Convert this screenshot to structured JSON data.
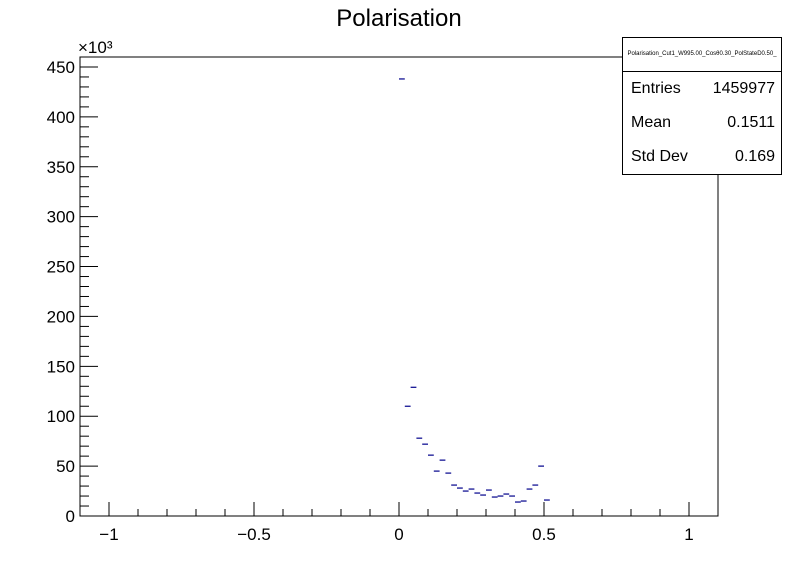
{
  "chart_data": {
    "type": "histogram",
    "title": "Polarisation",
    "xlabel": "",
    "ylabel": "",
    "y_multiplier_label": "×10³",
    "xlim": [
      -1.1,
      1.1
    ],
    "ylim": [
      0,
      460
    ],
    "x_ticks": [
      -1,
      -0.5,
      0,
      0.5,
      1
    ],
    "x_tick_labels": [
      "−1",
      "−0.5",
      "0",
      "0.5",
      "1"
    ],
    "y_ticks": [
      0,
      50,
      100,
      150,
      200,
      250,
      300,
      350,
      400,
      450
    ],
    "y_tick_labels": [
      "0",
      "50",
      "100",
      "150",
      "200",
      "250",
      "300",
      "350",
      "400",
      "450"
    ],
    "bin_width": 0.02,
    "bins": [
      {
        "x": 0.01,
        "y": 438
      },
      {
        "x": 0.03,
        "y": 110
      },
      {
        "x": 0.05,
        "y": 129
      },
      {
        "x": 0.07,
        "y": 78
      },
      {
        "x": 0.09,
        "y": 72
      },
      {
        "x": 0.11,
        "y": 61
      },
      {
        "x": 0.13,
        "y": 45
      },
      {
        "x": 0.15,
        "y": 56
      },
      {
        "x": 0.17,
        "y": 43
      },
      {
        "x": 0.19,
        "y": 31
      },
      {
        "x": 0.21,
        "y": 28
      },
      {
        "x": 0.23,
        "y": 25
      },
      {
        "x": 0.25,
        "y": 27
      },
      {
        "x": 0.27,
        "y": 23
      },
      {
        "x": 0.29,
        "y": 21
      },
      {
        "x": 0.31,
        "y": 26
      },
      {
        "x": 0.33,
        "y": 19
      },
      {
        "x": 0.35,
        "y": 20
      },
      {
        "x": 0.37,
        "y": 22
      },
      {
        "x": 0.39,
        "y": 20
      },
      {
        "x": 0.41,
        "y": 14
      },
      {
        "x": 0.43,
        "y": 15
      },
      {
        "x": 0.45,
        "y": 27
      },
      {
        "x": 0.47,
        "y": 31
      },
      {
        "x": 0.49,
        "y": 50
      },
      {
        "x": 0.51,
        "y": 16
      }
    ],
    "marker_color": "#00008b"
  },
  "stats": {
    "name": "Polarisation_Cut1_W995.00_Cosθ0.30_PolStateD0.50_",
    "entries_label": "Entries",
    "entries_value": "1459977",
    "mean_label": "Mean",
    "mean_value": "0.1511",
    "std_label": "Std Dev",
    "std_value": "0.169"
  }
}
